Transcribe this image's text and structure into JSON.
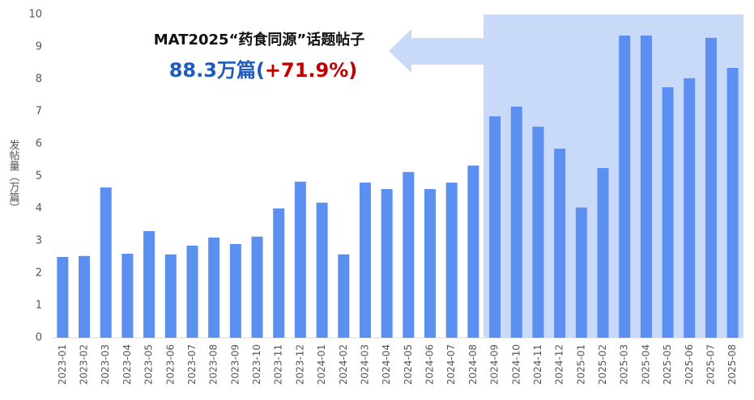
{
  "chart_data": {
    "type": "bar",
    "y_label": "发帖量（万篇）",
    "annotation_title": "MAT2025“药食同源”话题帖子",
    "annotation_value": "88.3万篇(",
    "annotation_change": "+71.9%)",
    "categories": [
      "2023-01",
      "2023-02",
      "2023-03",
      "2023-04",
      "2023-05",
      "2023-06",
      "2023-07",
      "2023-08",
      "2023-09",
      "2023-10",
      "2023-11",
      "2023-12",
      "2024-01",
      "2024-02",
      "2024-03",
      "2024-04",
      "2024-05",
      "2024-06",
      "2024-07",
      "2024-08",
      "2024-09",
      "2024-10",
      "2024-11",
      "2024-12",
      "2025-01",
      "2025-02",
      "2025-03",
      "2025-04",
      "2025-05",
      "2025-06",
      "2025-07",
      "2025-08"
    ],
    "values": [
      2.5,
      2.53,
      4.65,
      2.6,
      3.3,
      2.58,
      2.85,
      3.1,
      2.9,
      3.13,
      4.0,
      4.83,
      4.18,
      2.58,
      4.8,
      4.6,
      5.13,
      4.6,
      4.8,
      5.33,
      6.85,
      7.15,
      6.53,
      5.85,
      4.03,
      5.25,
      9.35,
      9.35,
      7.75,
      8.03,
      9.28,
      8.35
    ],
    "color": "#5b8ff0",
    "ylim": [
      0,
      10
    ],
    "yticks": [
      0,
      1,
      2,
      3,
      4,
      5,
      6,
      7,
      8,
      9,
      10
    ],
    "grid": false
  }
}
